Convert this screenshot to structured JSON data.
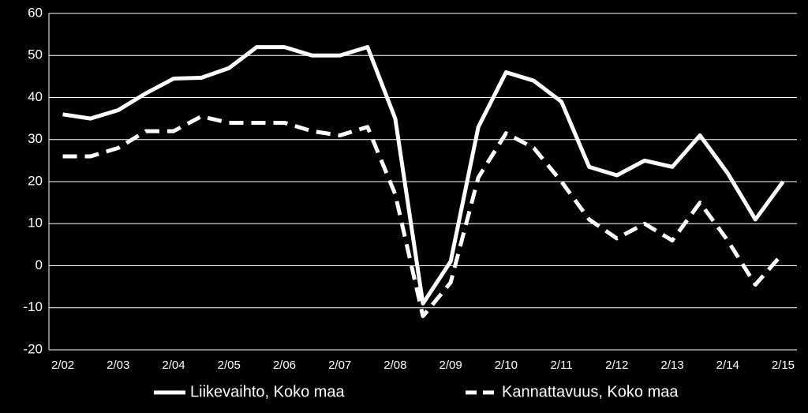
{
  "chart_data": {
    "type": "line",
    "categories": [
      "2/02",
      null,
      "2/03",
      null,
      "2/04",
      null,
      "2/05",
      null,
      "2/06",
      null,
      "2/07",
      null,
      "2/08",
      null,
      "2/09",
      null,
      "2/10",
      null,
      "2/11",
      null,
      "2/12",
      null,
      "2/13",
      null,
      "2/14",
      null,
      "2/15"
    ],
    "series": [
      {
        "name": "Liikevaihto, Koko maa",
        "color": "#ffffff",
        "dash": "solid",
        "values": [
          36,
          35,
          37,
          41,
          44.5,
          44.7,
          47,
          52,
          52,
          50,
          50,
          52,
          35,
          -9,
          1,
          33,
          46,
          44,
          39,
          23.5,
          21.5,
          25,
          23.5,
          31,
          22,
          11,
          20
        ]
      },
      {
        "name": "Kannattavuus, Koko maa",
        "color": "#ffffff",
        "dash": "dashed",
        "values": [
          26,
          26,
          28,
          32,
          32,
          35.5,
          34,
          34,
          34,
          32,
          31,
          33,
          17,
          -12,
          -4,
          21,
          31.5,
          28,
          20,
          11,
          6.5,
          10,
          6,
          15,
          6,
          -4.5,
          3
        ]
      }
    ],
    "ylim": [
      -20,
      60
    ],
    "yticks": [
      -20,
      -10,
      0,
      10,
      20,
      30,
      40,
      50,
      60
    ],
    "grid": true,
    "legend": "bottom"
  }
}
